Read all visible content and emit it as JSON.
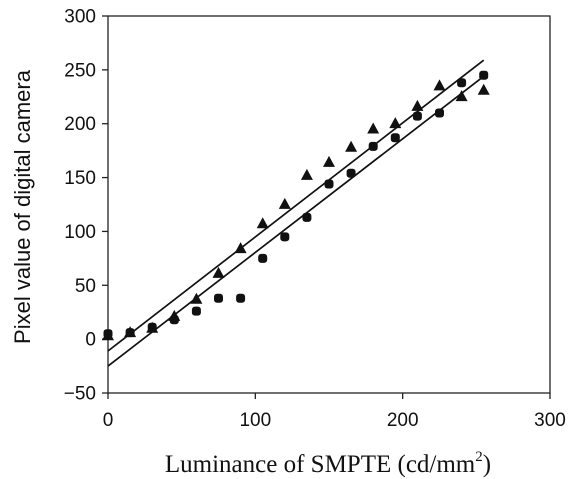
{
  "chart_data": {
    "type": "scatter",
    "title": "",
    "xlabel": "Luminance of SMPTE (cd/mm",
    "xlabel_superscript": "2",
    "xlabel_suffix": ")",
    "ylabel": "Pixel value of digital camera",
    "xlim": [
      0,
      300
    ],
    "ylim": [
      -50,
      300
    ],
    "xticks": [
      0,
      100,
      200,
      300
    ],
    "yticks": [
      -50,
      0,
      50,
      100,
      150,
      200,
      250,
      300
    ],
    "grid": false,
    "legend": "none",
    "series": [
      {
        "marker": "triangle",
        "x": [
          0,
          15,
          30,
          45,
          60,
          75,
          90,
          105,
          120,
          135,
          150,
          165,
          180,
          195,
          210,
          225,
          240,
          255
        ],
        "y": [
          3,
          6,
          10,
          21,
          37,
          61,
          84,
          107,
          125,
          152,
          164,
          178,
          195,
          200,
          216,
          235,
          225,
          231
        ]
      },
      {
        "marker": "circle",
        "x": [
          0,
          15,
          30,
          45,
          60,
          75,
          90,
          105,
          120,
          135,
          150,
          165,
          180,
          195,
          210,
          225,
          240,
          255
        ],
        "y": [
          5,
          6,
          11,
          18,
          26,
          38,
          38,
          75,
          95,
          113,
          144,
          154,
          179,
          187,
          207,
          210,
          238,
          245
        ]
      }
    ],
    "fit_lines": [
      {
        "x": [
          0,
          255
        ],
        "y": [
          -11,
          259
        ]
      },
      {
        "x": [
          0,
          255
        ],
        "y": [
          -25,
          244
        ]
      }
    ],
    "colors": {
      "marker": "#111111",
      "line": "#111111",
      "axis": "#222222"
    }
  }
}
